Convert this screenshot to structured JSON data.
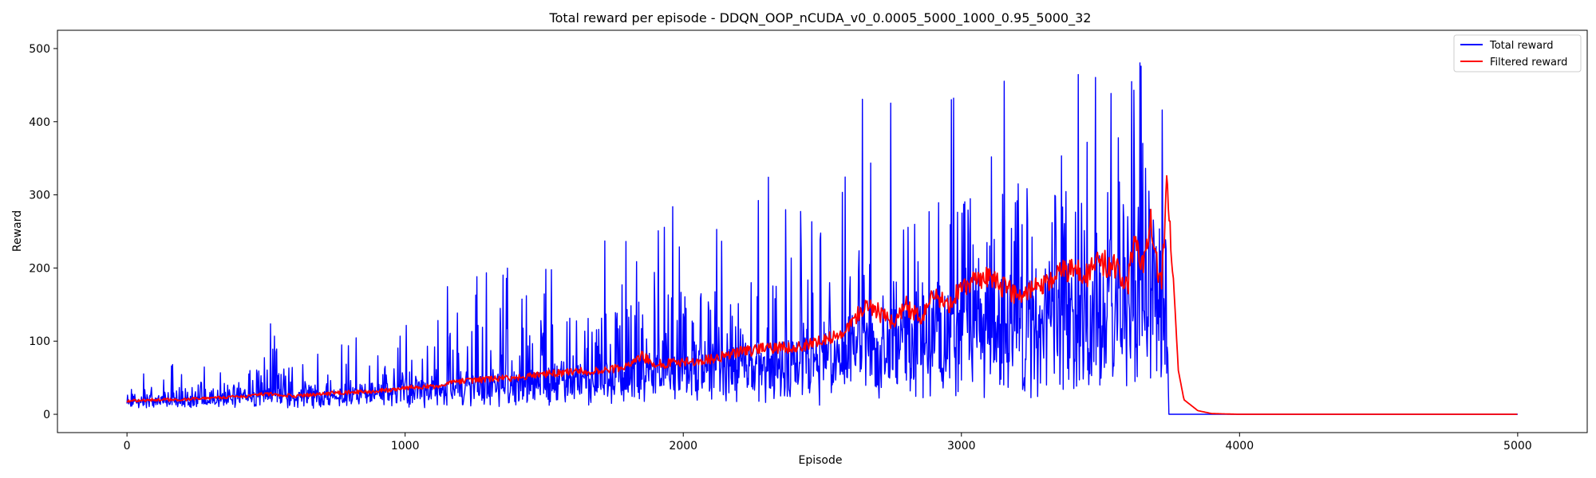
{
  "chart_data": {
    "type": "line",
    "title": "Total reward per episode - DDQN_OOP_nCUDA_v0_0.0005_5000_1000_0.95_5000_32",
    "xlabel": "Episode",
    "ylabel": "Reward",
    "xlim": [
      -250,
      5250
    ],
    "ylim": [
      -25,
      525
    ],
    "x_ticks": [
      0,
      1000,
      2000,
      3000,
      4000,
      5000
    ],
    "y_ticks": [
      0,
      100,
      200,
      300,
      400,
      500
    ],
    "grid": false,
    "legend_position": "top-right",
    "series": [
      {
        "name": "Total reward",
        "color": "#0000ff",
        "x": [
          0,
          100,
          200,
          300,
          400,
          500,
          600,
          700,
          800,
          900,
          1000,
          1100,
          1200,
          1300,
          1400,
          1500,
          1600,
          1700,
          1800,
          1900,
          2000,
          2100,
          2200,
          2300,
          2400,
          2500,
          2600,
          2700,
          2800,
          2900,
          3000,
          3100,
          3200,
          3300,
          3400,
          3500,
          3600,
          3650,
          3700,
          3740,
          3750,
          3800,
          4000,
          4500,
          5000
        ],
        "values": [
          20,
          22,
          20,
          24,
          26,
          30,
          28,
          32,
          34,
          36,
          40,
          42,
          45,
          50,
          52,
          58,
          60,
          62,
          70,
          68,
          75,
          80,
          82,
          88,
          92,
          95,
          110,
          120,
          130,
          140,
          150,
          160,
          165,
          170,
          175,
          180,
          190,
          200,
          210,
          205,
          0,
          0,
          0,
          0,
          0
        ],
        "envelope_min": [
          8,
          8,
          8,
          8,
          8,
          8,
          8,
          8,
          8,
          8,
          9,
          9,
          10,
          10,
          10,
          10,
          10,
          10,
          10,
          10,
          10,
          10,
          10,
          10,
          10,
          10,
          10,
          10,
          10,
          10,
          10,
          10,
          10,
          10,
          10,
          10,
          10,
          10,
          10,
          10,
          0,
          0,
          0,
          0,
          0
        ],
        "envelope_max": [
          50,
          60,
          75,
          70,
          72,
          140,
          60,
          95,
          140,
          100,
          125,
          165,
          210,
          215,
          200,
          240,
          220,
          230,
          270,
          250,
          310,
          290,
          290,
          330,
          300,
          300,
          440,
          440,
          420,
          470,
          475,
          480,
          500,
          470,
          500,
          500,
          500,
          500,
          500,
          500,
          0,
          0,
          0,
          0,
          0
        ]
      },
      {
        "name": "Filtered reward",
        "color": "#ff0000",
        "x": [
          0,
          100,
          200,
          300,
          400,
          500,
          600,
          700,
          800,
          900,
          1000,
          1100,
          1200,
          1300,
          1400,
          1500,
          1600,
          1700,
          1800,
          1850,
          1900,
          2000,
          2100,
          2200,
          2300,
          2400,
          2500,
          2550,
          2600,
          2650,
          2700,
          2750,
          2800,
          2850,
          2900,
          2950,
          3000,
          3050,
          3100,
          3150,
          3200,
          3250,
          3300,
          3350,
          3400,
          3450,
          3500,
          3550,
          3600,
          3620,
          3650,
          3680,
          3700,
          3720,
          3740,
          3760,
          3780,
          3800,
          3850,
          3900,
          4000,
          4500,
          5000
        ],
        "values": [
          18,
          20,
          20,
          22,
          24,
          28,
          25,
          28,
          30,
          32,
          36,
          38,
          45,
          48,
          50,
          55,
          58,
          60,
          65,
          80,
          68,
          72,
          75,
          85,
          90,
          92,
          100,
          110,
          120,
          150,
          140,
          125,
          150,
          130,
          160,
          150,
          170,
          180,
          190,
          175,
          160,
          170,
          180,
          190,
          200,
          190,
          210,
          200,
          180,
          240,
          200,
          270,
          210,
          175,
          320,
          200,
          60,
          20,
          5,
          1,
          0,
          0,
          0
        ]
      }
    ]
  }
}
